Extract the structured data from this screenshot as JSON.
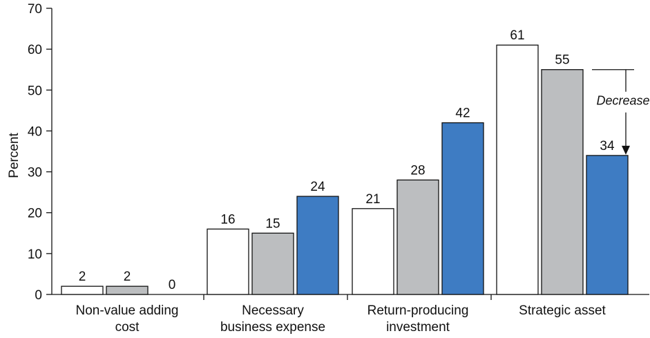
{
  "chart_data": {
    "type": "bar",
    "title": "",
    "xlabel": "",
    "ylabel": "Percent",
    "ylim": [
      0,
      70
    ],
    "yticks": [
      0,
      10,
      20,
      30,
      40,
      50,
      60,
      70
    ],
    "grid": false,
    "legend": "none",
    "categories": [
      [
        "Non-value adding",
        "cost"
      ],
      [
        "Necessary",
        "business expense"
      ],
      [
        "Return-producing",
        "investment"
      ],
      [
        "Strategic asset"
      ]
    ],
    "series": [
      {
        "color": "#ffffff",
        "values": [
          2,
          16,
          21,
          61
        ]
      },
      {
        "color": "#bcbec0",
        "values": [
          2,
          15,
          28,
          55
        ]
      },
      {
        "color": "#3e7cc3",
        "values": [
          0,
          24,
          42,
          34
        ]
      }
    ],
    "annotations": [
      {
        "text": "Decrease",
        "category_index": 3,
        "from_value": 55,
        "to_value": 34
      }
    ]
  }
}
